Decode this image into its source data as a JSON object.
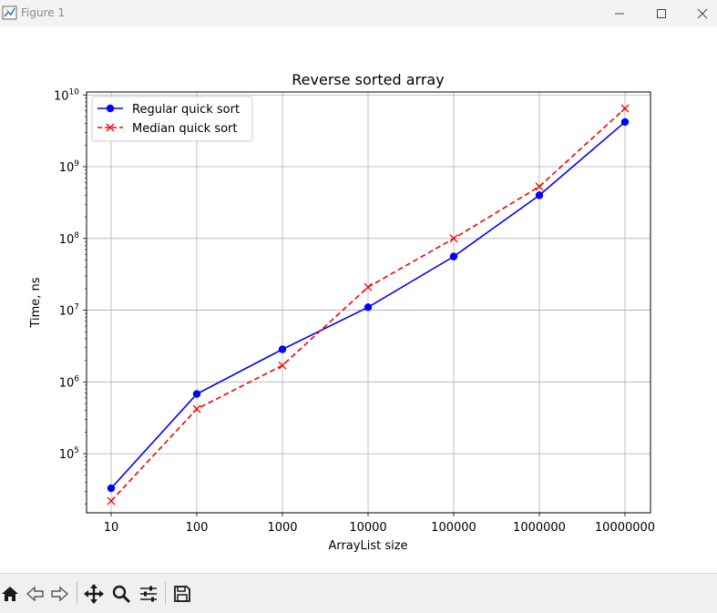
{
  "window": {
    "title": "Figure 1",
    "app_icon": "matplotlib-figure-icon",
    "controls": [
      "minimize-icon",
      "maximize-icon",
      "close-icon"
    ]
  },
  "toolbar": {
    "tools": [
      {
        "name": "home-icon",
        "label": "Home"
      },
      {
        "name": "back-arrow-icon",
        "label": "Back"
      },
      {
        "name": "forward-arrow-icon",
        "label": "Forward"
      },
      {
        "name": "pan-move-icon",
        "label": "Pan"
      },
      {
        "name": "zoom-magnifier-icon",
        "label": "Zoom"
      },
      {
        "name": "configure-subplots-icon",
        "label": "Subplots"
      },
      {
        "name": "save-floppy-icon",
        "label": "Save"
      }
    ]
  },
  "chart_data": {
    "type": "line",
    "title": "Reverse sorted array",
    "xlabel": "ArrayList size",
    "ylabel": "Time, ns",
    "categories": [
      "10",
      "100",
      "1000",
      "10000",
      "100000",
      "1000000",
      "10000000"
    ],
    "yscale": "log",
    "ylim": [
      15000,
      11000000000
    ],
    "yticks": [
      {
        "value": 100000,
        "base": "10",
        "exp": "5"
      },
      {
        "value": 1000000,
        "base": "10",
        "exp": "6"
      },
      {
        "value": 10000000,
        "base": "10",
        "exp": "7"
      },
      {
        "value": 100000000,
        "base": "10",
        "exp": "8"
      },
      {
        "value": 1000000000,
        "base": "10",
        "exp": "9"
      },
      {
        "value": 10000000000,
        "base": "10",
        "exp": "10"
      }
    ],
    "grid": true,
    "legend_position": "top-left",
    "series": [
      {
        "name": "Regular quick sort",
        "color": "#0000ff",
        "linestyle": "solid",
        "marker": "circle",
        "values": [
          33000,
          680000,
          2850000,
          11000000,
          56000000,
          400000000,
          4200000000
        ]
      },
      {
        "name": "Median quick sort",
        "color": "#ff0000",
        "linestyle": "dashed",
        "marker": "x",
        "values": [
          22000,
          420000,
          1700000,
          21000000,
          100000000,
          530000000,
          6500000000
        ]
      }
    ]
  }
}
